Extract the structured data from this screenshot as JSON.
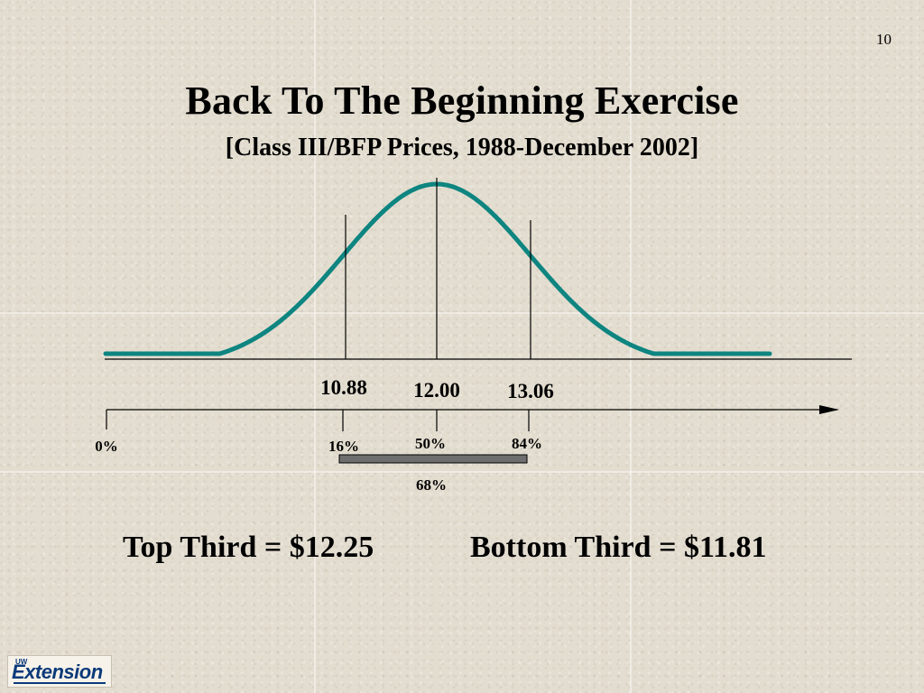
{
  "slide": {
    "number": "10",
    "title": "Back To The Beginning Exercise",
    "subtitle": "[Class III/BFP Prices, 1988-December 2002]"
  },
  "diagram": {
    "curve_color": "#0e8580",
    "price_labels": [
      "10.88",
      "12.00",
      "13.06"
    ],
    "percentile_labels": [
      "0%",
      "16%",
      "50%",
      "84%"
    ],
    "range_label": "68%",
    "range_bar_color": "#6e6e6e"
  },
  "summary": {
    "top_third": "Top Third = $12.25",
    "bottom_third": "Bottom Third = $11.81"
  },
  "logo": {
    "prefix": "UW",
    "word": "Extension"
  }
}
